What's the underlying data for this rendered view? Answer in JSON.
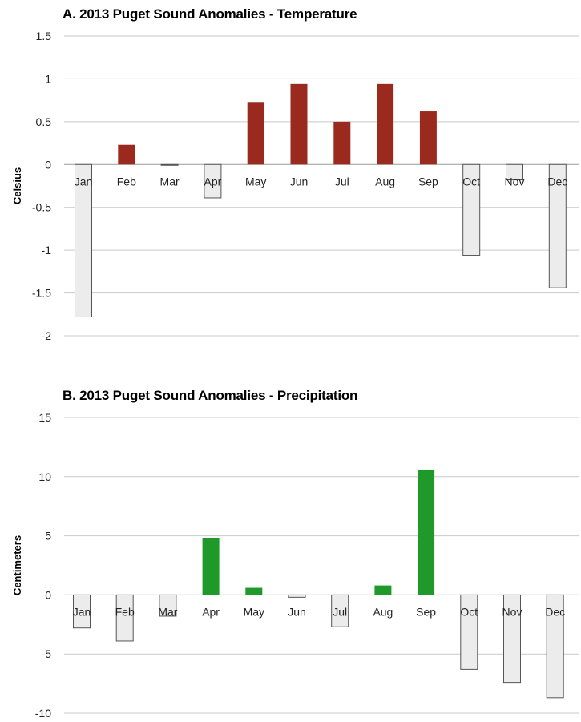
{
  "chart_data": [
    {
      "id": "A",
      "type": "bar",
      "title": "A. 2013 Puget Sound Anomalies - Temperature",
      "xlabel": "",
      "ylabel": "Celsius",
      "categories": [
        "Jan",
        "Feb",
        "Mar",
        "Apr",
        "May",
        "Jun",
        "Jul",
        "Aug",
        "Sep",
        "Oct",
        "Nov",
        "Dec"
      ],
      "values": [
        -1.78,
        0.23,
        0,
        -0.39,
        0.73,
        0.94,
        0.5,
        0.94,
        0.62,
        -1.06,
        -0.18,
        -1.44
      ],
      "ylim": [
        -2,
        1.5
      ],
      "yticks": [
        1.5,
        1,
        0.5,
        0,
        -0.5,
        -1,
        -1.5,
        -2
      ],
      "ytick_labels": [
        "1.5",
        "1",
        "0.5",
        "0",
        "-0.5",
        "-1",
        "-1.5",
        "-2"
      ],
      "grid": true,
      "colors": {
        "positive": "#9b2a1e",
        "negative_fill": "#ececec",
        "negative_stroke": "#555555"
      }
    },
    {
      "id": "B",
      "type": "bar",
      "title": "B. 2013 Puget Sound Anomalies - Precipitation",
      "xlabel": "",
      "ylabel": "Centimeters",
      "categories": [
        "Jan",
        "Feb",
        "Mar",
        "Apr",
        "May",
        "Jun",
        "Jul",
        "Aug",
        "Sep",
        "Oct",
        "Nov",
        "Dec"
      ],
      "values": [
        -2.8,
        -3.9,
        -1.8,
        4.8,
        0.6,
        -0.2,
        -2.7,
        0.8,
        10.6,
        -6.3,
        -7.4,
        -8.7
      ],
      "ylim": [
        -10,
        15
      ],
      "yticks": [
        15,
        10,
        5,
        0,
        -5,
        -10
      ],
      "ytick_labels": [
        "15",
        "10",
        "5",
        "0",
        "-5",
        "-10"
      ],
      "grid": true,
      "colors": {
        "positive": "#1f9a2a",
        "negative_fill": "#ececec",
        "negative_stroke": "#555555"
      }
    }
  ]
}
